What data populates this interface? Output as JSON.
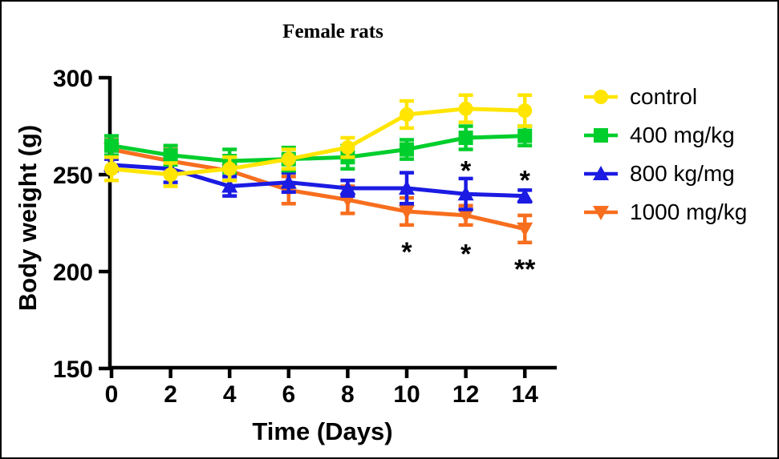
{
  "figure": {
    "background": "#FFFFFF",
    "border_color": "#000000"
  },
  "chart_data": {
    "type": "line",
    "title": "Female rats",
    "xlabel": "Time (Days)",
    "ylabel": "Body weight (g)",
    "axis_color": "#000000",
    "grid": false,
    "legend_position": "right",
    "xlim": [
      0,
      15
    ],
    "ylim": [
      150,
      300
    ],
    "x_ticks": [
      0,
      2,
      4,
      6,
      8,
      10,
      12,
      14
    ],
    "y_ticks": [
      150,
      200,
      250,
      300
    ],
    "x": [
      0,
      2,
      4,
      6,
      8,
      10,
      12,
      14
    ],
    "series": [
      {
        "name": "control",
        "color": "#FFE500",
        "marker": "circle",
        "values": [
          253,
          250,
          253,
          258,
          264,
          281,
          284,
          283
        ],
        "errors": [
          6,
          6,
          6,
          5,
          5,
          7,
          7,
          8
        ]
      },
      {
        "name": "400 mg/kg",
        "color": "#00CE2C",
        "marker": "square",
        "values": [
          265,
          260,
          257,
          258,
          259,
          263,
          269,
          270
        ],
        "errors": [
          5,
          5,
          6,
          6,
          6,
          5,
          6,
          5
        ]
      },
      {
        "name": "800 kg/mg",
        "color": "#1B1BE3",
        "marker": "triangle-up",
        "values": [
          255,
          253,
          244,
          246,
          243,
          243,
          240,
          239
        ],
        "errors": [
          3,
          7,
          5,
          5,
          4,
          8,
          8,
          3
        ]
      },
      {
        "name": "1000 mg/kg",
        "color": "#F76E1E",
        "marker": "triangle-down",
        "values": [
          263,
          257,
          252,
          242,
          237,
          231,
          229,
          222
        ],
        "errors": [
          5,
          6,
          5,
          7,
          7,
          7,
          5,
          7
        ]
      }
    ],
    "draw_order": [
      3,
      2,
      1,
      0
    ],
    "annotations": [
      {
        "day": 10,
        "value": 212,
        "text": "*"
      },
      {
        "day": 12,
        "value": 211,
        "text": "*"
      },
      {
        "day": 12,
        "value": 254,
        "text": "*"
      },
      {
        "day": 14,
        "value": 249,
        "text": "*"
      },
      {
        "day": 14,
        "value": 203,
        "text": "**"
      }
    ]
  }
}
